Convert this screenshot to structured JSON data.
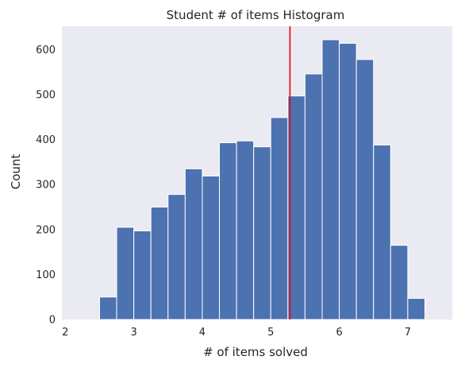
{
  "chart_data": {
    "type": "bar",
    "title": "Student # of items Histogram",
    "xlabel": "# of items solved",
    "ylabel": "Count",
    "xlim": [
      1.95,
      7.65
    ],
    "ylim": [
      0,
      652
    ],
    "xticks": [
      2,
      3,
      4,
      5,
      6,
      7
    ],
    "yticks": [
      0,
      100,
      200,
      300,
      400,
      500,
      600
    ],
    "bin_width": 0.25,
    "bins": [
      {
        "start": 2.5,
        "value": 50
      },
      {
        "start": 2.75,
        "value": 205
      },
      {
        "start": 3.0,
        "value": 197
      },
      {
        "start": 3.25,
        "value": 250
      },
      {
        "start": 3.5,
        "value": 278
      },
      {
        "start": 3.75,
        "value": 335
      },
      {
        "start": 4.0,
        "value": 319
      },
      {
        "start": 4.25,
        "value": 393
      },
      {
        "start": 4.5,
        "value": 397
      },
      {
        "start": 4.75,
        "value": 384
      },
      {
        "start": 5.0,
        "value": 449
      },
      {
        "start": 5.25,
        "value": 497
      },
      {
        "start": 5.5,
        "value": 546
      },
      {
        "start": 5.75,
        "value": 622
      },
      {
        "start": 6.0,
        "value": 614
      },
      {
        "start": 6.25,
        "value": 578
      },
      {
        "start": 6.5,
        "value": 388
      },
      {
        "start": 6.75,
        "value": 165
      },
      {
        "start": 7.0,
        "value": 47
      }
    ],
    "mean_line": 5.28,
    "bar_color": "#4c72b0",
    "mean_line_color": "#e8000b",
    "background_color": "#eaeaf2",
    "grid": false
  }
}
